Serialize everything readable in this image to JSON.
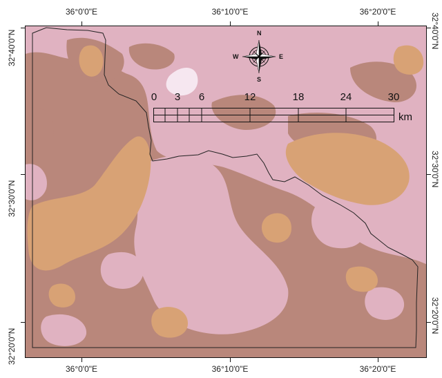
{
  "map": {
    "colors": {
      "background": "#e0b2c1",
      "medium": "#b9877b",
      "sand": "#d8a275",
      "light": "#f6e7f0",
      "boundary": "#222222"
    },
    "axis": {
      "top": [
        "36°0'0\"E",
        "36°10'0\"E",
        "36°20'0\"E"
      ],
      "bottom": [
        "36°0'0\"E",
        "36°10'0\"E",
        "36°20'0\"E"
      ],
      "left": [
        "32°40'0\"N",
        "32°30'0\"N",
        "32°20'0\"N"
      ],
      "right": [
        "32°40'0\"N",
        "32°30'0\"N",
        "32°20'0\"N"
      ]
    },
    "scale_bar": {
      "labels": [
        "0",
        "3",
        "6",
        "12",
        "18",
        "24",
        "30"
      ],
      "unit": "km"
    },
    "north_arrow": {
      "n": "N",
      "s": "S",
      "e": "E",
      "w": "W"
    }
  }
}
